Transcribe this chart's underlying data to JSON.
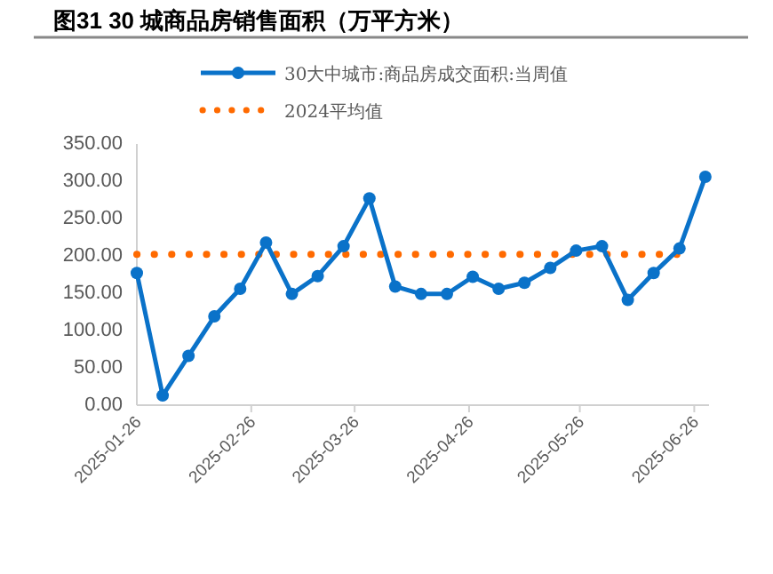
{
  "chart_data": {
    "type": "line",
    "title": "图31 30 城商品房销售面积（万平方米）",
    "x": [
      "2025-01-26",
      "2025-02-02",
      "2025-02-09",
      "2025-02-16",
      "2025-02-23",
      "2025-03-02",
      "2025-03-09",
      "2025-03-16",
      "2025-03-23",
      "2025-03-30",
      "2025-04-06",
      "2025-04-13",
      "2025-04-20",
      "2025-04-27",
      "2025-05-04",
      "2025-05-11",
      "2025-05-18",
      "2025-05-25",
      "2025-06-01",
      "2025-06-08",
      "2025-06-15",
      "2025-06-22",
      "2025-06-29"
    ],
    "series": [
      {
        "name": "30大中城市:商品房成交面积:当周值",
        "color": "#0a72c9",
        "values": [
          177,
          13,
          66,
          119,
          156,
          218,
          149,
          173,
          213,
          277,
          159,
          149,
          149,
          172,
          156,
          164,
          184,
          207,
          213,
          141,
          177,
          210,
          306
        ]
      }
    ],
    "ref_lines": [
      {
        "axis": "y",
        "value": 202,
        "label": "2024平均值",
        "color": "#ff6a00",
        "line_style": "dotted"
      }
    ],
    "xlim": [
      "2025-01-26",
      "2025-06-30"
    ],
    "xticks": [
      "2025-01-26",
      "2025-02-26",
      "2025-03-26",
      "2025-04-26",
      "2025-05-26",
      "2025-06-26"
    ],
    "ylim": [
      0,
      350
    ],
    "yticks": [
      {
        "value": 0,
        "label": "0.00"
      },
      {
        "value": 50,
        "label": "50.00"
      },
      {
        "value": 100,
        "label": "100.00"
      },
      {
        "value": 150,
        "label": "150.00"
      },
      {
        "value": 200,
        "label": "200.00"
      },
      {
        "value": 250,
        "label": "250.00"
      },
      {
        "value": 300,
        "label": "300.00"
      },
      {
        "value": 350,
        "label": "350.00"
      }
    ],
    "grid": false,
    "legend": "top",
    "marker": "circle",
    "line_style": "solid"
  }
}
